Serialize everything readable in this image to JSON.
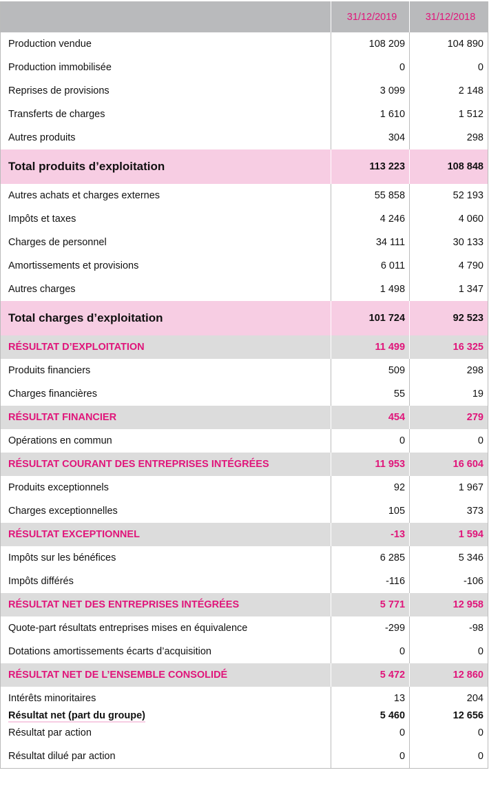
{
  "header": {
    "label": "",
    "col1": "31/12/2019",
    "col2": "31/12/2018"
  },
  "rows": [
    {
      "type": "normal",
      "label": "Production vendue",
      "v2019": "108 209",
      "v2018": "104 890"
    },
    {
      "type": "normal",
      "label": "Production immobilisée",
      "v2019": "0",
      "v2018": "0"
    },
    {
      "type": "normal",
      "label": "Reprises de provisions",
      "v2019": "3 099",
      "v2018": "2 148"
    },
    {
      "type": "normal",
      "label": "Transferts de charges",
      "v2019": "1 610",
      "v2018": "1 512"
    },
    {
      "type": "normal",
      "label": "Autres produits",
      "v2019": "304",
      "v2018": "298"
    },
    {
      "type": "total",
      "label": "Total produits d’exploitation",
      "v2019": "113 223",
      "v2018": "108 848"
    },
    {
      "type": "normal",
      "label": "Autres achats et charges externes",
      "v2019": "55 858",
      "v2018": "52 193"
    },
    {
      "type": "normal",
      "label": "Impôts et taxes",
      "v2019": "4 246",
      "v2018": "4 060"
    },
    {
      "type": "normal",
      "label": "Charges de personnel",
      "v2019": "34 111",
      "v2018": "30 133"
    },
    {
      "type": "normal",
      "label": "Amortissements et provisions",
      "v2019": "6 011",
      "v2018": "4 790"
    },
    {
      "type": "normal",
      "label": "Autres charges",
      "v2019": "1 498",
      "v2018": "1 347"
    },
    {
      "type": "total",
      "label": "Total charges d’exploitation",
      "v2019": "101 724",
      "v2018": "92 523"
    },
    {
      "type": "result",
      "label": "RÉSULTAT D’EXPLOITATION",
      "v2019": "11 499",
      "v2018": "16 325"
    },
    {
      "type": "normal",
      "label": "Produits financiers",
      "v2019": "509",
      "v2018": "298"
    },
    {
      "type": "normal",
      "label": "Charges financières",
      "v2019": "55",
      "v2018": "19"
    },
    {
      "type": "result",
      "label": "RÉSULTAT FINANCIER",
      "v2019": "454",
      "v2018": "279"
    },
    {
      "type": "normal",
      "label": "Opérations en commun",
      "v2019": "0",
      "v2018": "0"
    },
    {
      "type": "result",
      "label": "RÉSULTAT COURANT DES ENTREPRISES INTÉGRÉES",
      "v2019": "11 953",
      "v2018": "16 604"
    },
    {
      "type": "normal",
      "label": "Produits exceptionnels",
      "v2019": "92",
      "v2018": "1 967"
    },
    {
      "type": "normal",
      "label": "Charges exceptionnelles",
      "v2019": "105",
      "v2018": "373"
    },
    {
      "type": "result",
      "label": "RÉSULTAT EXCEPTIONNEL",
      "v2019": "-13",
      "v2018": "1 594"
    },
    {
      "type": "normal",
      "label": "Impôts sur les bénéfices",
      "v2019": "6 285",
      "v2018": "5 346"
    },
    {
      "type": "normal",
      "label": "Impôts différés",
      "v2019": "-116",
      "v2018": "-106"
    },
    {
      "type": "result",
      "label": "RÉSULTAT NET DES ENTREPRISES INTÉGRÉES",
      "v2019": "5 771",
      "v2018": "12 958"
    },
    {
      "type": "normal",
      "label": "Quote-part résultats entreprises mises en équivalence",
      "v2019": "-299",
      "v2018": "-98"
    },
    {
      "type": "normal",
      "label": "Dotations amortissements écarts d’acquisition",
      "v2019": "0",
      "v2018": "0"
    },
    {
      "type": "result",
      "label": "RÉSULTAT NET DE L’ENSEMBLE CONSOLIDÉ",
      "v2019": "5 472",
      "v2018": "12 860"
    },
    {
      "type": "normal",
      "label": "Intérêts minoritaires",
      "v2019": "13",
      "v2018": "204"
    },
    {
      "type": "bold",
      "label": "Résultat net (part du groupe)",
      "v2019": "5 460",
      "v2018": "12 656"
    },
    {
      "type": "normal",
      "label": "Résultat par action",
      "v2019": "0",
      "v2018": "0"
    },
    {
      "type": "normal",
      "label": "Résultat dilué par action",
      "v2019": "0",
      "v2018": "0"
    }
  ],
  "colors": {
    "accent": "#e0157a",
    "header_bg": "#b9babc",
    "total_bg": "#f7cde3",
    "result_bg": "#dcdcdc"
  }
}
